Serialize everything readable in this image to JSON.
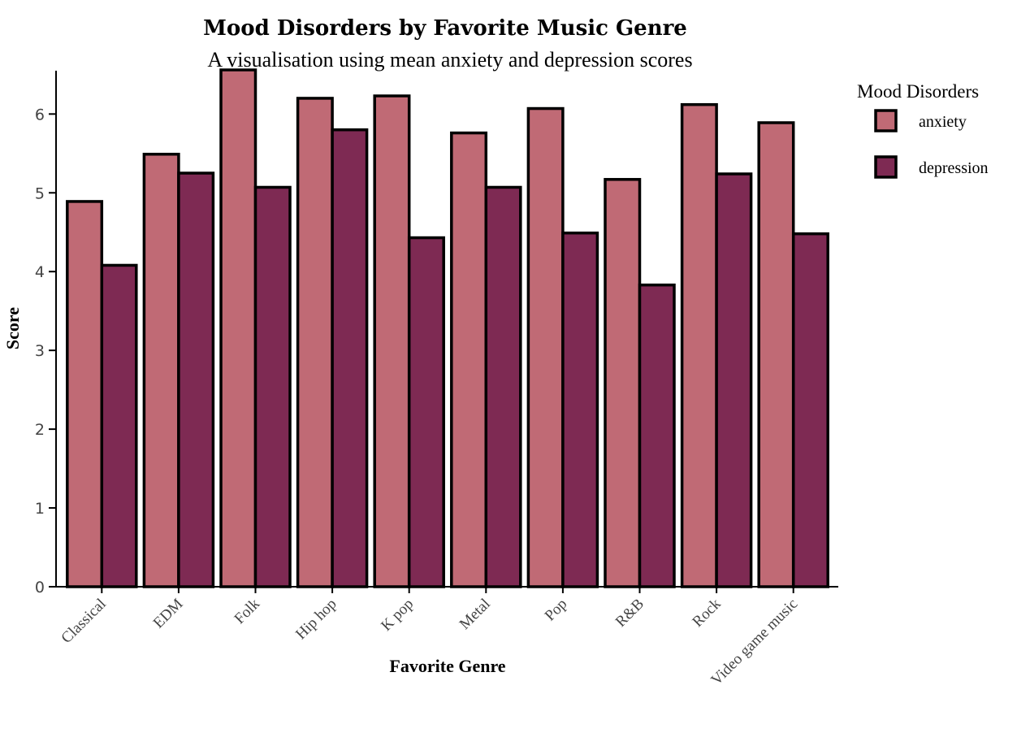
{
  "chart_data": {
    "type": "bar",
    "title": "Mood Disorders by Favorite Music Genre",
    "subtitle": "A visualisation using mean anxiety and depression scores",
    "xlabel": "Favorite Genre",
    "ylabel": "Score",
    "ylim": [
      0,
      6.55
    ],
    "yticks": [
      0,
      1,
      2,
      3,
      4,
      5,
      6
    ],
    "grid": false,
    "legend": {
      "title": "Mood Disorders",
      "position": "top-right"
    },
    "categories": [
      "Classical",
      "EDM",
      "Folk",
      "Hip hop",
      "K pop",
      "Metal",
      "Pop",
      "R&B",
      "Rock",
      "Video game music"
    ],
    "series": [
      {
        "name": "anxiety",
        "color": "#c06a75",
        "values": [
          4.89,
          5.49,
          6.56,
          6.2,
          6.23,
          5.76,
          6.07,
          5.17,
          6.12,
          5.89
        ]
      },
      {
        "name": "depression",
        "color": "#7e2a53",
        "values": [
          4.08,
          5.25,
          5.07,
          5.8,
          4.43,
          5.07,
          4.49,
          3.83,
          5.24,
          4.48
        ]
      }
    ]
  }
}
